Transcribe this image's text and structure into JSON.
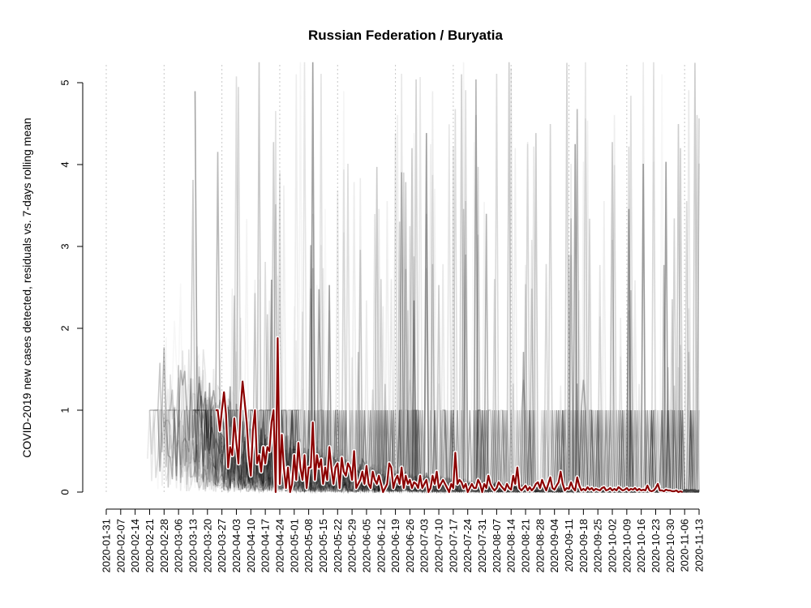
{
  "chart_data": {
    "type": "line",
    "title": "Russian Federation / Buryatia",
    "xlabel": "",
    "ylabel": "COVID-2019 new cases detected, residuals vs. 7-days rolling mean",
    "ylim": [
      0,
      5
    ],
    "y_ticks": [
      "0",
      "1",
      "2",
      "3",
      "4",
      "5"
    ],
    "x_ticks": [
      "2020-01-31",
      "2020-02-07",
      "2020-02-14",
      "2020-02-21",
      "2020-02-28",
      "2020-03-06",
      "2020-03-13",
      "2020-03-20",
      "2020-03-27",
      "2020-04-03",
      "2020-04-10",
      "2020-04-17",
      "2020-04-24",
      "2020-05-01",
      "2020-05-08",
      "2020-05-15",
      "2020-05-22",
      "2020-05-29",
      "2020-06-05",
      "2020-06-12",
      "2020-06-19",
      "2020-06-26",
      "2020-07-03",
      "2020-07-10",
      "2020-07-17",
      "2020-07-24",
      "2020-07-31",
      "2020-08-07",
      "2020-08-14",
      "2020-08-21",
      "2020-08-28",
      "2020-09-04",
      "2020-09-11",
      "2020-09-18",
      "2020-09-25",
      "2020-10-02",
      "2020-10-09",
      "2020-10-16",
      "2020-10-23",
      "2020-10-30",
      "2020-11-06",
      "2020-11-13"
    ],
    "vgrid_dates": [
      "2020-01-31",
      "2020-02-28",
      "2020-03-27",
      "2020-04-24",
      "2020-05-22",
      "2020-06-19",
      "2020-07-17",
      "2020-08-14",
      "2020-09-11",
      "2020-10-09",
      "2020-11-06"
    ],
    "background_series_count": 80,
    "highlight_series": {
      "color": "#8b0000",
      "start_date": "2020-03-24",
      "values": [
        1.0,
        1.0,
        0.75,
        1.0,
        1.22,
        0.95,
        0.3,
        0.55,
        0.45,
        0.9,
        0.6,
        0.35,
        1.0,
        1.35,
        1.1,
        0.85,
        0.45,
        0.2,
        0.75,
        1.0,
        0.35,
        0.45,
        0.25,
        0.55,
        0.35,
        0.55,
        0.5,
        0.85,
        1.0,
        0.0,
        1.88,
        0.1,
        0.7,
        0.3,
        0.05,
        0.3,
        0.0,
        0.1,
        0.45,
        0.15,
        0.6,
        0.3,
        0.15,
        0.45,
        0.05,
        0.3,
        0.3,
        0.85,
        0.15,
        0.45,
        0.3,
        0.4,
        0.1,
        0.3,
        0.15,
        0.55,
        0.3,
        0.1,
        0.3,
        0.35,
        0.05,
        0.42,
        0.25,
        0.2,
        0.35,
        0.3,
        0.15,
        0.5,
        0.05,
        0.1,
        0.15,
        0.25,
        0.1,
        0.32,
        0.1,
        0.05,
        0.25,
        0.15,
        0.1,
        0.2,
        0.1,
        0.0,
        0.05,
        0.1,
        0.35,
        0.3,
        0.05,
        0.15,
        0.2,
        0.1,
        0.3,
        0.05,
        0.2,
        0.1,
        0.15,
        0.05,
        0.12,
        0.1,
        0.05,
        0.2,
        0.05,
        0.1,
        0.15,
        0.0,
        0.05,
        0.2,
        0.1,
        0.25,
        0.05,
        0.1,
        0.15,
        0.1,
        0.05,
        0.0,
        0.1,
        0.05,
        0.48,
        0.1,
        0.15,
        0.12,
        0.05,
        0.1,
        0.0,
        0.05,
        0.1,
        0.05,
        0.05,
        0.15,
        0.1,
        0.0,
        0.1,
        0.05,
        0.2,
        0.1,
        0.05,
        0.02,
        0.05,
        0.12,
        0.08,
        0.05,
        0.02,
        0.1,
        0.05,
        0.03,
        0.2,
        0.1,
        0.3,
        0.05,
        0.02,
        0.05,
        0.08,
        0.02,
        0.06,
        0.02,
        0.05,
        0.1,
        0.12,
        0.05,
        0.15,
        0.08,
        0.02,
        0.1,
        0.18,
        0.05,
        0.03,
        0.08,
        0.12,
        0.25,
        0.1,
        0.02,
        0.05,
        0.04,
        0.12,
        0.05,
        0.02,
        0.18,
        0.08,
        0.02,
        0.04,
        0.02,
        0.06,
        0.03,
        0.05,
        0.02,
        0.04,
        0.03,
        0.02,
        0.05,
        0.06,
        0.02,
        0.03,
        0.05,
        0.02,
        0.04,
        0.02,
        0.06,
        0.04,
        0.02,
        0.03,
        0.05,
        0.02,
        0.04,
        0.03,
        0.05,
        0.02,
        0.04,
        0.02,
        0.03,
        0.02,
        0.08,
        0.02,
        0.01,
        0.02,
        0.05,
        0.1,
        0.02,
        0.02,
        0.01,
        0.03,
        0.02,
        0.02,
        0.01,
        0.01,
        0.02,
        0.0,
        0.01,
        0.0
      ]
    },
    "grid": "vertical dotted",
    "legend": "none"
  }
}
